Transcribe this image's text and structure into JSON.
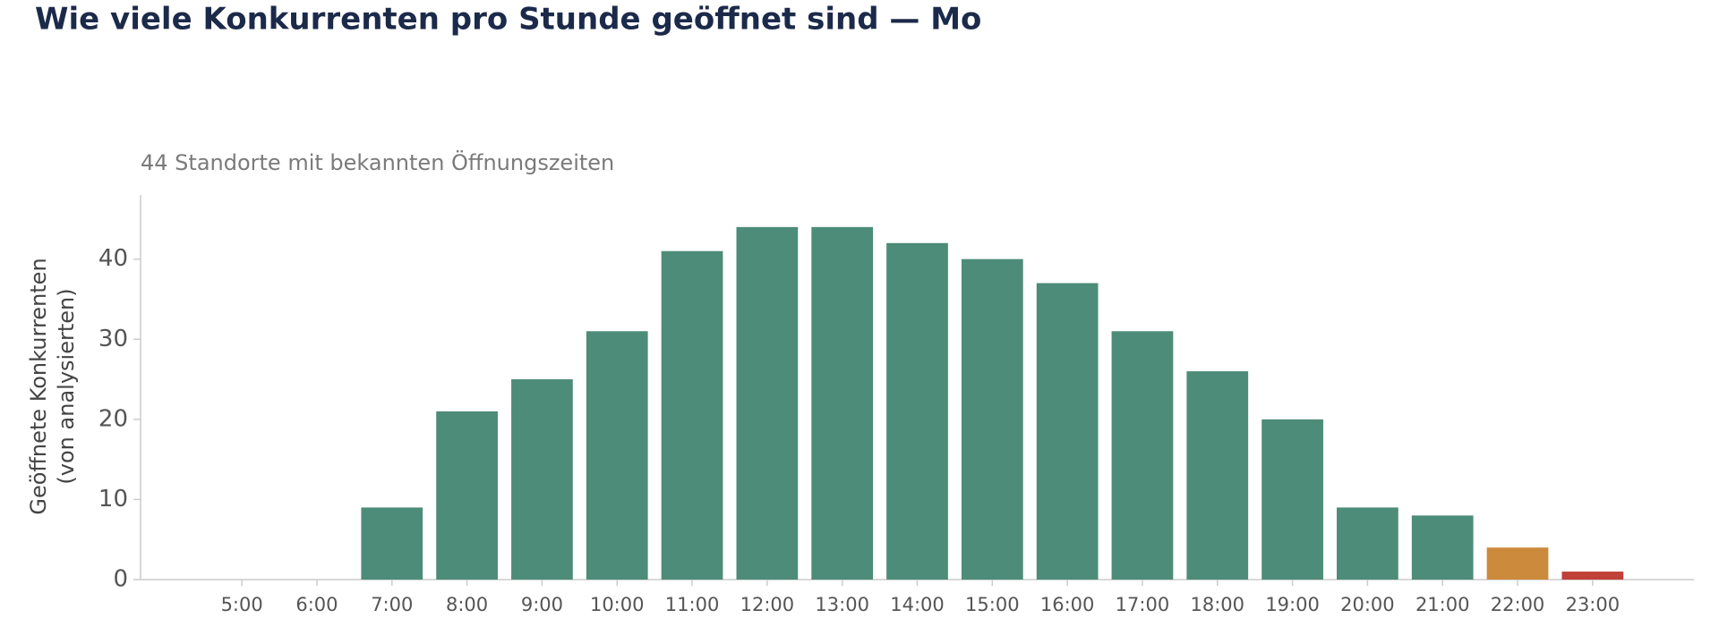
{
  "chart_data": {
    "type": "bar",
    "title": "Wie viele Konkurrenten pro Stunde geöffnet sind — Mo",
    "subtitle": "44 Standorte mit bekannten Öffnungszeiten",
    "ylabel": [
      "Geöffnete Konkurrenten",
      "(von analysierten)"
    ],
    "categories": [
      "5:00",
      "6:00",
      "7:00",
      "8:00",
      "9:00",
      "10:00",
      "11:00",
      "12:00",
      "13:00",
      "14:00",
      "15:00",
      "16:00",
      "17:00",
      "18:00",
      "19:00",
      "20:00",
      "21:00",
      "22:00",
      "23:00"
    ],
    "values": [
      0,
      0,
      9,
      21,
      25,
      31,
      41,
      44,
      44,
      42,
      40,
      37,
      31,
      26,
      20,
      9,
      8,
      4,
      1
    ],
    "colors": [
      "#4d8c78",
      "#4d8c78",
      "#4d8c78",
      "#4d8c78",
      "#4d8c78",
      "#4d8c78",
      "#4d8c78",
      "#4d8c78",
      "#4d8c78",
      "#4d8c78",
      "#4d8c78",
      "#4d8c78",
      "#4d8c78",
      "#4d8c78",
      "#4d8c78",
      "#4d8c78",
      "#4d8c78",
      "#cc8a3c",
      "#c0403a"
    ],
    "ylim": [
      0,
      48
    ],
    "yticks": [
      0,
      10,
      20,
      30,
      40
    ],
    "grid": false
  }
}
